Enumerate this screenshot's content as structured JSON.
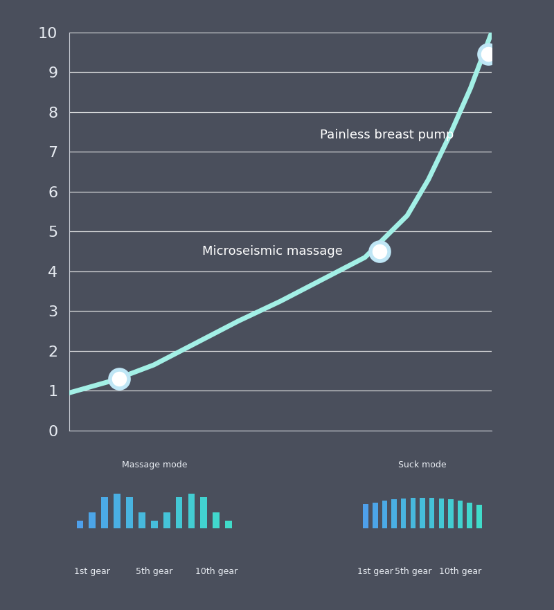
{
  "chart_data": [
    {
      "type": "line",
      "x": [
        0,
        1,
        2,
        3,
        4,
        5,
        6,
        7,
        8,
        8.5,
        9,
        9.5,
        10
      ],
      "values": [
        0.95,
        1.25,
        1.65,
        2.2,
        2.75,
        3.25,
        3.8,
        4.35,
        5.4,
        6.3,
        7.4,
        8.6,
        10
      ],
      "color": "#a3f0e6",
      "xlim": [
        0,
        10
      ],
      "ylim": [
        0,
        10
      ],
      "yticks": [
        0,
        1,
        2,
        3,
        4,
        5,
        6,
        7,
        8,
        9,
        10
      ],
      "grid": true,
      "tick_labels": "y",
      "points": {
        "x": [
          1.18,
          7.34,
          9.92
        ],
        "values": [
          1.3,
          4.5,
          9.45
        ],
        "labels": [
          null,
          "Microseismic massage",
          "Painless breast pump"
        ]
      }
    },
    {
      "type": "bar",
      "title": "Massage mode",
      "categories": [
        null,
        "1st gear",
        null,
        null,
        null,
        null,
        "5th gear",
        null,
        null,
        null,
        null,
        "10th gear",
        null
      ],
      "values": [
        11,
        23,
        45,
        50,
        45,
        23,
        11,
        23,
        45,
        50,
        45,
        23,
        11
      ],
      "colors": [
        "#4ea0eb",
        "#4ca5e8",
        "#4baae6",
        "#4aafe3",
        "#49b4e0",
        "#47b9dd",
        "#46bedb",
        "#45c3d8",
        "#44c8d5",
        "#43cdd2",
        "#42d2d0",
        "#41d7cd",
        "#40dcca"
      ],
      "ylim": [
        0,
        55
      ],
      "tick_labels": "x"
    },
    {
      "type": "bar",
      "title": "Suck mode",
      "categories": [
        null,
        "1st gear",
        null,
        null,
        null,
        "5th gear",
        null,
        null,
        null,
        null,
        "10th gear",
        null,
        null
      ],
      "values": [
        35,
        37,
        40,
        42,
        43,
        44,
        44,
        44,
        43,
        42,
        40,
        37,
        34
      ],
      "colors": [
        "#4ea0eb",
        "#4ca5e8",
        "#4baae6",
        "#4aafe3",
        "#49b4e0",
        "#47b9dd",
        "#46bedb",
        "#45c3d8",
        "#44c8d5",
        "#43cdd2",
        "#42d2d0",
        "#41d7cd",
        "#40dcca"
      ],
      "ylim": [
        0,
        55
      ],
      "tick_labels": "x"
    }
  ]
}
